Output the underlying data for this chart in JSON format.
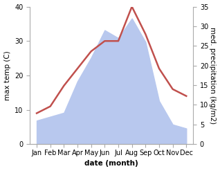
{
  "months": [
    "Jan",
    "Feb",
    "Mar",
    "Apr",
    "May",
    "Jun",
    "Jul",
    "Aug",
    "Sep",
    "Oct",
    "Nov",
    "Dec"
  ],
  "temperature": [
    9,
    11,
    17,
    22,
    27,
    30,
    30,
    40,
    32,
    22,
    16,
    14
  ],
  "precipitation": [
    6,
    7,
    8,
    16,
    22,
    29,
    27,
    32,
    26,
    11,
    5,
    4
  ],
  "temp_color": "#c0504d",
  "precip_fill_color": "#b8c8ee",
  "left_ylabel": "max temp (C)",
  "right_ylabel": "med. precipitation (kg/m2)",
  "xlabel": "date (month)",
  "left_ylim": [
    0,
    40
  ],
  "right_ylim": [
    0,
    35
  ],
  "left_yticks": [
    0,
    10,
    20,
    30,
    40
  ],
  "right_yticks": [
    0,
    5,
    10,
    15,
    20,
    25,
    30,
    35
  ],
  "bg_color": "#ffffff",
  "temp_linewidth": 1.8,
  "label_fontsize": 7.5,
  "tick_fontsize": 7
}
